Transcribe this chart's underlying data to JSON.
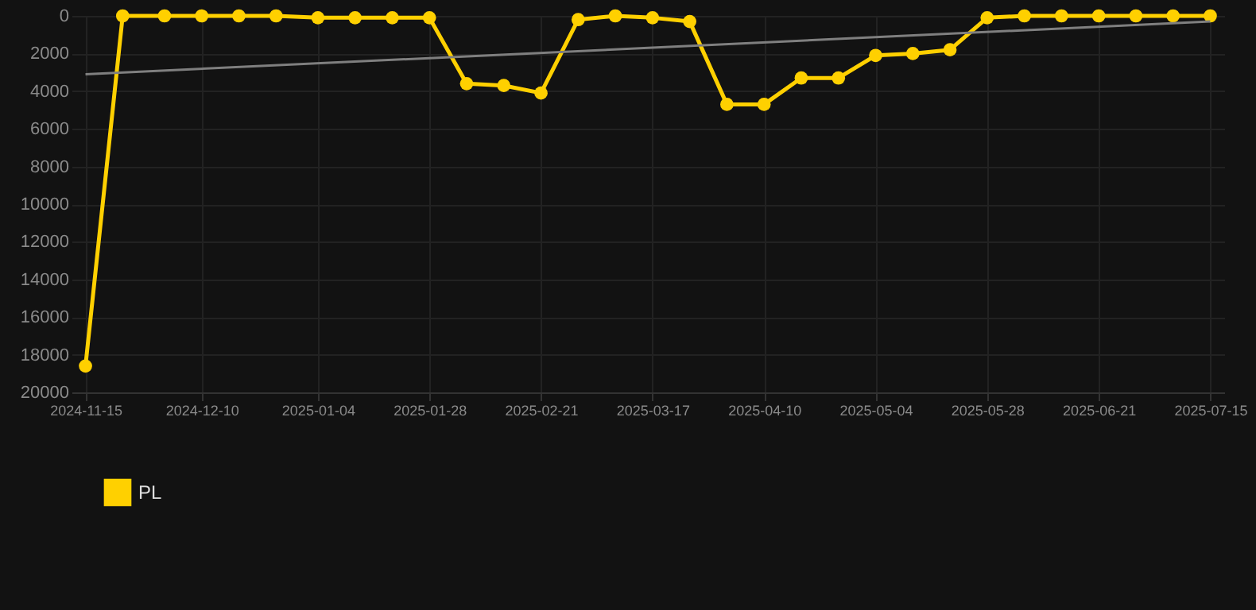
{
  "chart_data": {
    "type": "line",
    "x": [
      "2024-11-15",
      "2024-11-23",
      "2024-12-02",
      "2024-12-10",
      "2024-12-18",
      "2024-12-26",
      "2025-01-04",
      "2025-01-12",
      "2025-01-20",
      "2025-01-28",
      "2025-02-05",
      "2025-02-13",
      "2025-02-21",
      "2025-03-01",
      "2025-03-09",
      "2025-03-17",
      "2025-03-25",
      "2025-04-02",
      "2025-04-10",
      "2025-04-18",
      "2025-04-26",
      "2025-05-04",
      "2025-05-12",
      "2025-05-20",
      "2025-05-28",
      "2025-06-05",
      "2025-06-13",
      "2025-06-21",
      "2025-06-29",
      "2025-07-07",
      "2025-07-15"
    ],
    "series": [
      {
        "name": "PL",
        "color": "#ffd000",
        "marker": "circle",
        "values": [
          18600,
          0,
          0,
          0,
          0,
          0,
          100,
          100,
          100,
          100,
          3600,
          3700,
          4100,
          200,
          0,
          100,
          300,
          4700,
          4700,
          3300,
          3300,
          2100,
          2000,
          1800,
          100,
          0,
          0,
          0,
          0,
          0,
          0
        ]
      },
      {
        "type": "line",
        "color": "#7f7f7f",
        "marker": "none",
        "x": [
          "2024-11-15",
          "2025-07-15"
        ],
        "values": [
          3100,
          300
        ]
      }
    ],
    "xlim": [
      "2024-11-12",
      "2025-07-18"
    ],
    "xticks": [
      "2024-11-15",
      "2024-12-10",
      "2025-01-04",
      "2025-01-28",
      "2025-02-21",
      "2025-03-17",
      "2025-04-10",
      "2025-05-04",
      "2025-05-28",
      "2025-06-21",
      "2025-07-15"
    ],
    "ylim": [
      20000,
      0
    ],
    "yticks": [
      0,
      2000,
      4000,
      6000,
      8000,
      10000,
      12000,
      14000,
      16000,
      18000,
      20000
    ],
    "grid": true,
    "legend": "bottom",
    "line_style": "solid"
  }
}
